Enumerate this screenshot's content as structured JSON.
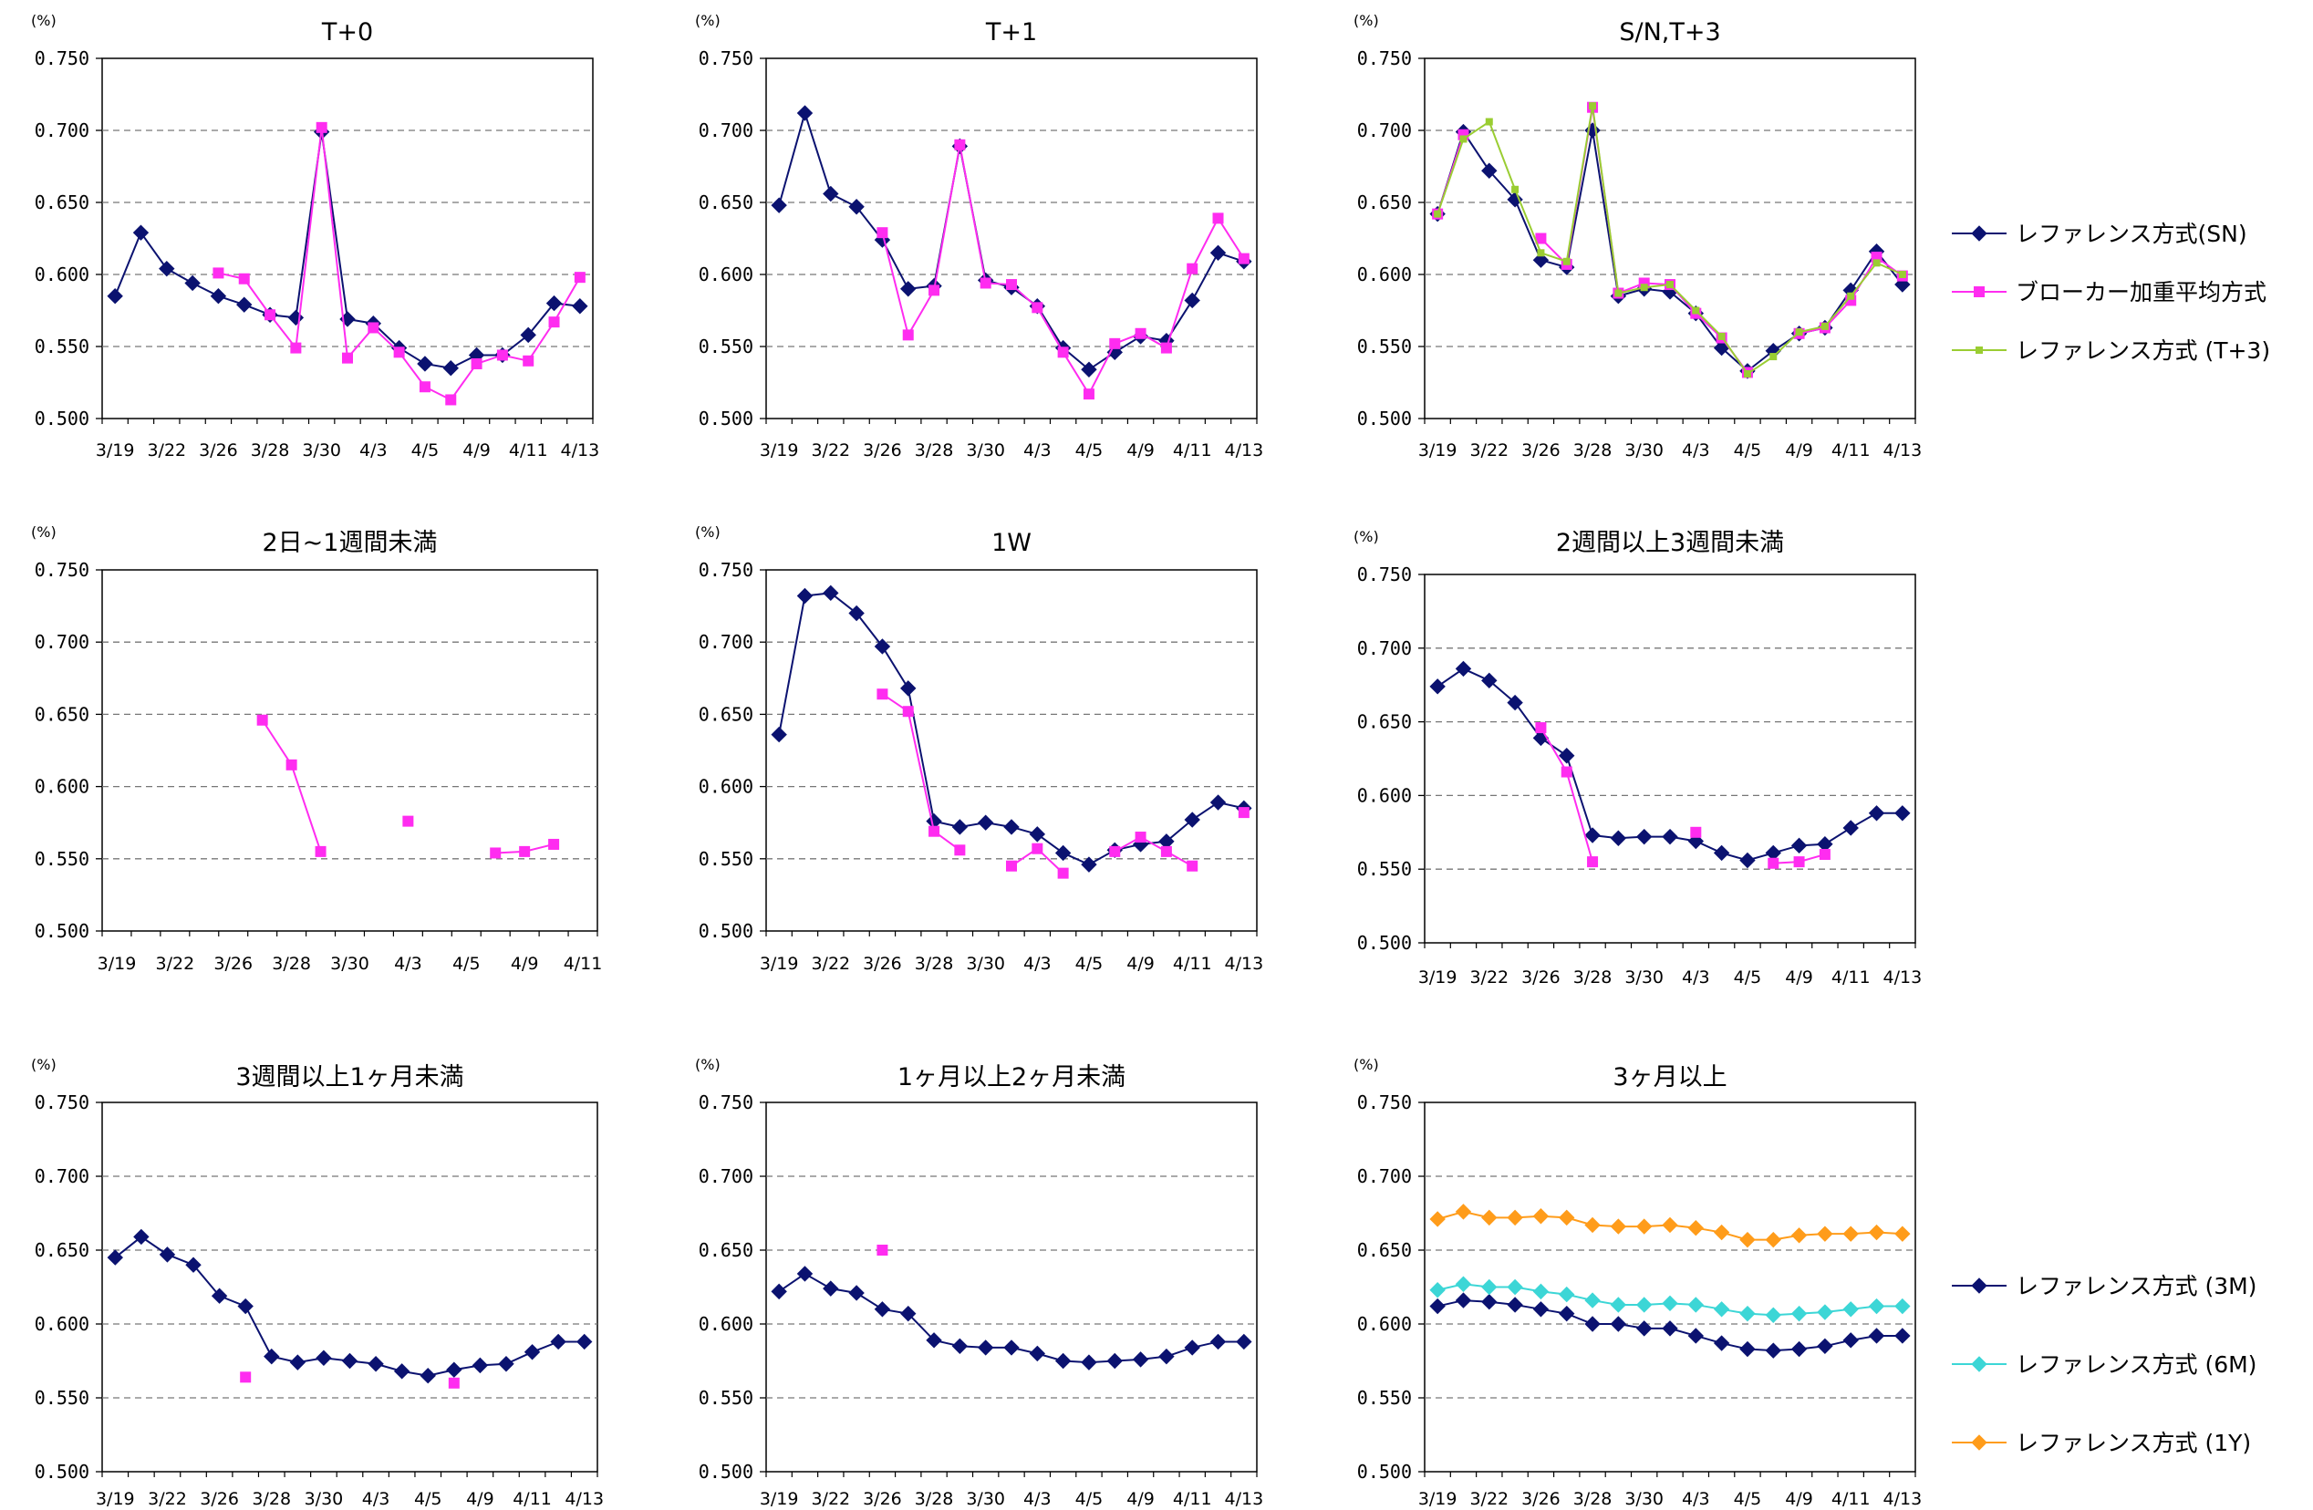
{
  "colors": {
    "navy": "#0b1270",
    "magenta": "#ff2cf0",
    "lime": "#9acd32",
    "cyan": "#3cd6d6",
    "orange": "#ff9c1a",
    "grid": "#777777"
  },
  "legends": {
    "top": [
      {
        "label": "レファレンス方式(SN)",
        "color": "navy",
        "marker": "diamond"
      },
      {
        "label": "ブローカー加重平均方式",
        "color": "magenta",
        "marker": "square"
      },
      {
        "label": "レファレンス方式 (T+3)",
        "color": "lime",
        "marker": "smallsquare"
      }
    ],
    "bottom": [
      {
        "label": "レファレンス方式 (3M)",
        "color": "navy",
        "marker": "diamond"
      },
      {
        "label": "レファレンス方式 (6M)",
        "color": "cyan",
        "marker": "diamond"
      },
      {
        "label": "レファレンス方式 (1Y)",
        "color": "orange",
        "marker": "diamond"
      }
    ]
  },
  "chart_data": [
    {
      "type": "line",
      "title": "T+0",
      "unit": "(%)",
      "ylim": [
        0.5,
        0.75
      ],
      "yticks": [
        "0.750",
        "0.700",
        "0.650",
        "0.600",
        "0.550",
        "0.500"
      ],
      "xticks": [
        {
          "i": 0,
          "label": "3/19"
        },
        {
          "i": 2,
          "label": "3/22"
        },
        {
          "i": 4,
          "label": "3/26"
        },
        {
          "i": 6,
          "label": "3/28"
        },
        {
          "i": 8,
          "label": "3/30"
        },
        {
          "i": 10,
          "label": "4/3"
        },
        {
          "i": 12,
          "label": "4/5"
        },
        {
          "i": 14,
          "label": "4/9"
        },
        {
          "i": 16,
          "label": "4/11"
        },
        {
          "i": 18,
          "label": "4/13"
        }
      ],
      "n": 19,
      "series": [
        {
          "color": "navy",
          "marker": "diamond",
          "values": [
            0.585,
            0.629,
            0.604,
            0.594,
            0.585,
            0.579,
            0.572,
            0.57,
            0.699,
            0.569,
            0.566,
            0.549,
            0.538,
            0.535,
            0.544,
            0.544,
            0.558,
            0.58,
            0.578
          ]
        },
        {
          "color": "magenta",
          "marker": "square",
          "values": [
            null,
            null,
            null,
            null,
            0.601,
            0.597,
            0.572,
            0.549,
            0.702,
            0.542,
            0.563,
            0.546,
            0.522,
            0.513,
            0.538,
            0.544,
            0.54,
            0.567,
            0.598
          ]
        }
      ]
    },
    {
      "type": "line",
      "title": "T+1",
      "unit": "(%)",
      "ylim": [
        0.5,
        0.75
      ],
      "yticks": [
        "0.750",
        "0.700",
        "0.650",
        "0.600",
        "0.550",
        "0.500"
      ],
      "xticks": [
        {
          "i": 0,
          "label": "3/19"
        },
        {
          "i": 2,
          "label": "3/22"
        },
        {
          "i": 4,
          "label": "3/26"
        },
        {
          "i": 6,
          "label": "3/28"
        },
        {
          "i": 8,
          "label": "3/30"
        },
        {
          "i": 10,
          "label": "4/3"
        },
        {
          "i": 12,
          "label": "4/5"
        },
        {
          "i": 14,
          "label": "4/9"
        },
        {
          "i": 16,
          "label": "4/11"
        },
        {
          "i": 18,
          "label": "4/13"
        }
      ],
      "n": 19,
      "series": [
        {
          "color": "navy",
          "marker": "diamond",
          "values": [
            0.648,
            0.712,
            0.656,
            0.647,
            0.624,
            0.59,
            0.592,
            0.689,
            0.596,
            0.591,
            0.578,
            0.549,
            0.534,
            0.546,
            0.557,
            0.554,
            0.582,
            0.615,
            0.609
          ]
        },
        {
          "color": "magenta",
          "marker": "square",
          "values": [
            null,
            null,
            null,
            null,
            0.629,
            0.558,
            0.589,
            0.69,
            0.594,
            0.593,
            0.577,
            0.546,
            0.517,
            0.552,
            0.559,
            0.549,
            0.604,
            0.639,
            0.611
          ]
        }
      ]
    },
    {
      "type": "line",
      "title": "S/N,T+3",
      "unit": "(%)",
      "ylim": [
        0.5,
        0.75
      ],
      "yticks": [
        "0.750",
        "0.700",
        "0.650",
        "0.600",
        "0.550",
        "0.500"
      ],
      "xticks": [
        {
          "i": 0,
          "label": "3/19"
        },
        {
          "i": 2,
          "label": "3/22"
        },
        {
          "i": 4,
          "label": "3/26"
        },
        {
          "i": 6,
          "label": "3/28"
        },
        {
          "i": 8,
          "label": "3/30"
        },
        {
          "i": 10,
          "label": "4/3"
        },
        {
          "i": 12,
          "label": "4/5"
        },
        {
          "i": 14,
          "label": "4/9"
        },
        {
          "i": 16,
          "label": "4/11"
        },
        {
          "i": 18,
          "label": "4/13"
        }
      ],
      "n": 19,
      "series": [
        {
          "color": "navy",
          "marker": "diamond",
          "values": [
            0.642,
            0.699,
            0.672,
            0.652,
            0.61,
            0.605,
            0.7,
            0.585,
            0.59,
            0.588,
            0.573,
            0.549,
            0.533,
            0.547,
            0.559,
            0.563,
            0.589,
            0.616,
            0.593
          ]
        },
        {
          "color": "magenta",
          "marker": "square",
          "values": [
            0.642,
            0.697,
            null,
            null,
            0.625,
            0.607,
            0.716,
            0.587,
            0.594,
            0.593,
            0.573,
            0.556,
            0.532,
            null,
            0.559,
            0.563,
            0.582,
            0.612,
            0.599
          ]
        },
        {
          "color": "lime",
          "marker": "smallsquare",
          "values": [
            0.642,
            0.694,
            0.706,
            0.659,
            0.615,
            0.609,
            0.717,
            0.587,
            0.591,
            0.593,
            0.575,
            0.557,
            0.531,
            0.543,
            0.56,
            0.564,
            0.585,
            0.608,
            0.6
          ]
        }
      ]
    },
    {
      "type": "line",
      "title": "2日~1週間未満",
      "unit": "(%)",
      "ylim": [
        0.5,
        0.75
      ],
      "yticks": [
        "0.750",
        "0.700",
        "0.650",
        "0.600",
        "0.550",
        "0.500"
      ],
      "xticks": [
        {
          "i": 0,
          "label": "3/19"
        },
        {
          "i": 2,
          "label": "3/22"
        },
        {
          "i": 4,
          "label": "3/26"
        },
        {
          "i": 6,
          "label": "3/28"
        },
        {
          "i": 8,
          "label": "3/30"
        },
        {
          "i": 10,
          "label": "4/3"
        },
        {
          "i": 12,
          "label": "4/5"
        },
        {
          "i": 14,
          "label": "4/9"
        },
        {
          "i": 16,
          "label": "4/11"
        }
      ],
      "n": 17,
      "series": [
        {
          "color": "magenta",
          "marker": "square",
          "values": [
            null,
            null,
            null,
            null,
            null,
            0.646,
            0.615,
            0.555,
            null,
            null,
            0.576,
            null,
            null,
            0.554,
            0.555,
            0.56,
            null
          ]
        }
      ]
    },
    {
      "type": "line",
      "title": "1W",
      "unit": "(%)",
      "ylim": [
        0.5,
        0.75
      ],
      "yticks": [
        "0.750",
        "0.700",
        "0.650",
        "0.600",
        "0.550",
        "0.500"
      ],
      "xticks": [
        {
          "i": 0,
          "label": "3/19"
        },
        {
          "i": 2,
          "label": "3/22"
        },
        {
          "i": 4,
          "label": "3/26"
        },
        {
          "i": 6,
          "label": "3/28"
        },
        {
          "i": 8,
          "label": "3/30"
        },
        {
          "i": 10,
          "label": "4/3"
        },
        {
          "i": 12,
          "label": "4/5"
        },
        {
          "i": 14,
          "label": "4/9"
        },
        {
          "i": 16,
          "label": "4/11"
        },
        {
          "i": 18,
          "label": "4/13"
        }
      ],
      "n": 19,
      "series": [
        {
          "color": "navy",
          "marker": "diamond",
          "values": [
            0.636,
            0.732,
            0.734,
            0.72,
            0.697,
            0.668,
            0.576,
            0.572,
            0.575,
            0.572,
            0.567,
            0.554,
            0.546,
            0.556,
            0.56,
            0.562,
            0.577,
            0.589,
            0.585
          ]
        },
        {
          "color": "magenta",
          "marker": "square",
          "values": [
            null,
            null,
            null,
            null,
            0.664,
            0.652,
            0.569,
            0.556,
            null,
            0.545,
            0.557,
            0.54,
            null,
            0.555,
            0.565,
            0.555,
            0.545,
            null,
            0.582
          ]
        }
      ]
    },
    {
      "type": "line",
      "title": "2週間以上3週間未満",
      "unit": "(%)",
      "ylim": [
        0.5,
        0.75
      ],
      "yticks": [
        "0.750",
        "0.700",
        "0.650",
        "0.600",
        "0.550",
        "0.500"
      ],
      "xticks": [
        {
          "i": 0,
          "label": "3/19"
        },
        {
          "i": 2,
          "label": "3/22"
        },
        {
          "i": 4,
          "label": "3/26"
        },
        {
          "i": 6,
          "label": "3/28"
        },
        {
          "i": 8,
          "label": "3/30"
        },
        {
          "i": 10,
          "label": "4/3"
        },
        {
          "i": 12,
          "label": "4/5"
        },
        {
          "i": 14,
          "label": "4/9"
        },
        {
          "i": 16,
          "label": "4/11"
        },
        {
          "i": 18,
          "label": "4/13"
        }
      ],
      "n": 19,
      "series": [
        {
          "color": "navy",
          "marker": "diamond",
          "values": [
            0.674,
            0.686,
            0.678,
            0.663,
            0.639,
            0.627,
            0.573,
            0.571,
            0.572,
            0.572,
            0.569,
            0.561,
            0.556,
            0.561,
            0.566,
            0.567,
            0.578,
            0.588,
            0.588
          ]
        },
        {
          "color": "magenta",
          "marker": "square",
          "values": [
            null,
            null,
            null,
            null,
            0.646,
            0.616,
            0.555,
            null,
            null,
            null,
            0.575,
            null,
            null,
            0.554,
            0.555,
            0.56,
            null,
            null,
            null
          ]
        }
      ]
    },
    {
      "type": "line",
      "title": "3週間以上1ヶ月未満",
      "unit": "(%)",
      "ylim": [
        0.5,
        0.75
      ],
      "yticks": [
        "0.750",
        "0.700",
        "0.650",
        "0.600",
        "0.550",
        "0.500"
      ],
      "xticks": [
        {
          "i": 0,
          "label": "3/19"
        },
        {
          "i": 2,
          "label": "3/22"
        },
        {
          "i": 4,
          "label": "3/26"
        },
        {
          "i": 6,
          "label": "3/28"
        },
        {
          "i": 8,
          "label": "3/30"
        },
        {
          "i": 10,
          "label": "4/3"
        },
        {
          "i": 12,
          "label": "4/5"
        },
        {
          "i": 14,
          "label": "4/9"
        },
        {
          "i": 16,
          "label": "4/11"
        },
        {
          "i": 18,
          "label": "4/13"
        }
      ],
      "n": 19,
      "series": [
        {
          "color": "navy",
          "marker": "diamond",
          "values": [
            0.645,
            0.659,
            0.647,
            0.64,
            0.619,
            0.612,
            0.578,
            0.574,
            0.577,
            0.575,
            0.573,
            0.568,
            0.565,
            0.569,
            0.572,
            0.573,
            0.581,
            0.588,
            0.588
          ]
        },
        {
          "color": "magenta",
          "marker": "square",
          "values": [
            null,
            null,
            null,
            null,
            null,
            0.564,
            null,
            null,
            null,
            null,
            null,
            null,
            null,
            0.56,
            null,
            null,
            null,
            null,
            null
          ]
        }
      ]
    },
    {
      "type": "line",
      "title": "1ヶ月以上2ヶ月未満",
      "unit": "(%)",
      "ylim": [
        0.5,
        0.75
      ],
      "yticks": [
        "0.750",
        "0.700",
        "0.650",
        "0.600",
        "0.550",
        "0.500"
      ],
      "xticks": [
        {
          "i": 0,
          "label": "3/19"
        },
        {
          "i": 2,
          "label": "3/22"
        },
        {
          "i": 4,
          "label": "3/26"
        },
        {
          "i": 6,
          "label": "3/28"
        },
        {
          "i": 8,
          "label": "3/30"
        },
        {
          "i": 10,
          "label": "4/3"
        },
        {
          "i": 12,
          "label": "4/5"
        },
        {
          "i": 14,
          "label": "4/9"
        },
        {
          "i": 16,
          "label": "4/11"
        },
        {
          "i": 18,
          "label": "4/13"
        }
      ],
      "n": 19,
      "series": [
        {
          "color": "navy",
          "marker": "diamond",
          "values": [
            0.622,
            0.634,
            0.624,
            0.621,
            0.61,
            0.607,
            0.589,
            0.585,
            0.584,
            0.584,
            0.58,
            0.575,
            0.574,
            0.575,
            0.576,
            0.578,
            0.584,
            0.588,
            0.588
          ]
        },
        {
          "color": "magenta",
          "marker": "square",
          "values": [
            null,
            null,
            null,
            null,
            0.65,
            null,
            null,
            null,
            null,
            null,
            null,
            null,
            null,
            null,
            null,
            null,
            null,
            null,
            null
          ]
        }
      ]
    },
    {
      "type": "line",
      "title": "3ヶ月以上",
      "unit": "(%)",
      "ylim": [
        0.5,
        0.75
      ],
      "yticks": [
        "0.750",
        "0.700",
        "0.650",
        "0.600",
        "0.550",
        "0.500"
      ],
      "xticks": [
        {
          "i": 0,
          "label": "3/19"
        },
        {
          "i": 2,
          "label": "3/22"
        },
        {
          "i": 4,
          "label": "3/26"
        },
        {
          "i": 6,
          "label": "3/28"
        },
        {
          "i": 8,
          "label": "3/30"
        },
        {
          "i": 10,
          "label": "4/3"
        },
        {
          "i": 12,
          "label": "4/5"
        },
        {
          "i": 14,
          "label": "4/9"
        },
        {
          "i": 16,
          "label": "4/11"
        },
        {
          "i": 18,
          "label": "4/13"
        }
      ],
      "n": 19,
      "series": [
        {
          "color": "navy",
          "marker": "diamond",
          "values": [
            0.612,
            0.616,
            0.615,
            0.613,
            0.61,
            0.607,
            0.6,
            0.6,
            0.597,
            0.597,
            0.592,
            0.587,
            0.583,
            0.582,
            0.583,
            0.585,
            0.589,
            0.592,
            0.592
          ]
        },
        {
          "color": "cyan",
          "marker": "diamond",
          "values": [
            0.623,
            0.627,
            0.625,
            0.625,
            0.622,
            0.62,
            0.616,
            0.613,
            0.613,
            0.614,
            0.613,
            0.61,
            0.607,
            0.606,
            0.607,
            0.608,
            0.61,
            0.612,
            0.612
          ]
        },
        {
          "color": "orange",
          "marker": "diamond",
          "values": [
            0.671,
            0.676,
            0.672,
            0.672,
            0.673,
            0.672,
            0.667,
            0.666,
            0.666,
            0.667,
            0.665,
            0.662,
            0.657,
            0.657,
            0.66,
            0.661,
            0.661,
            0.662,
            0.661
          ]
        }
      ]
    }
  ]
}
